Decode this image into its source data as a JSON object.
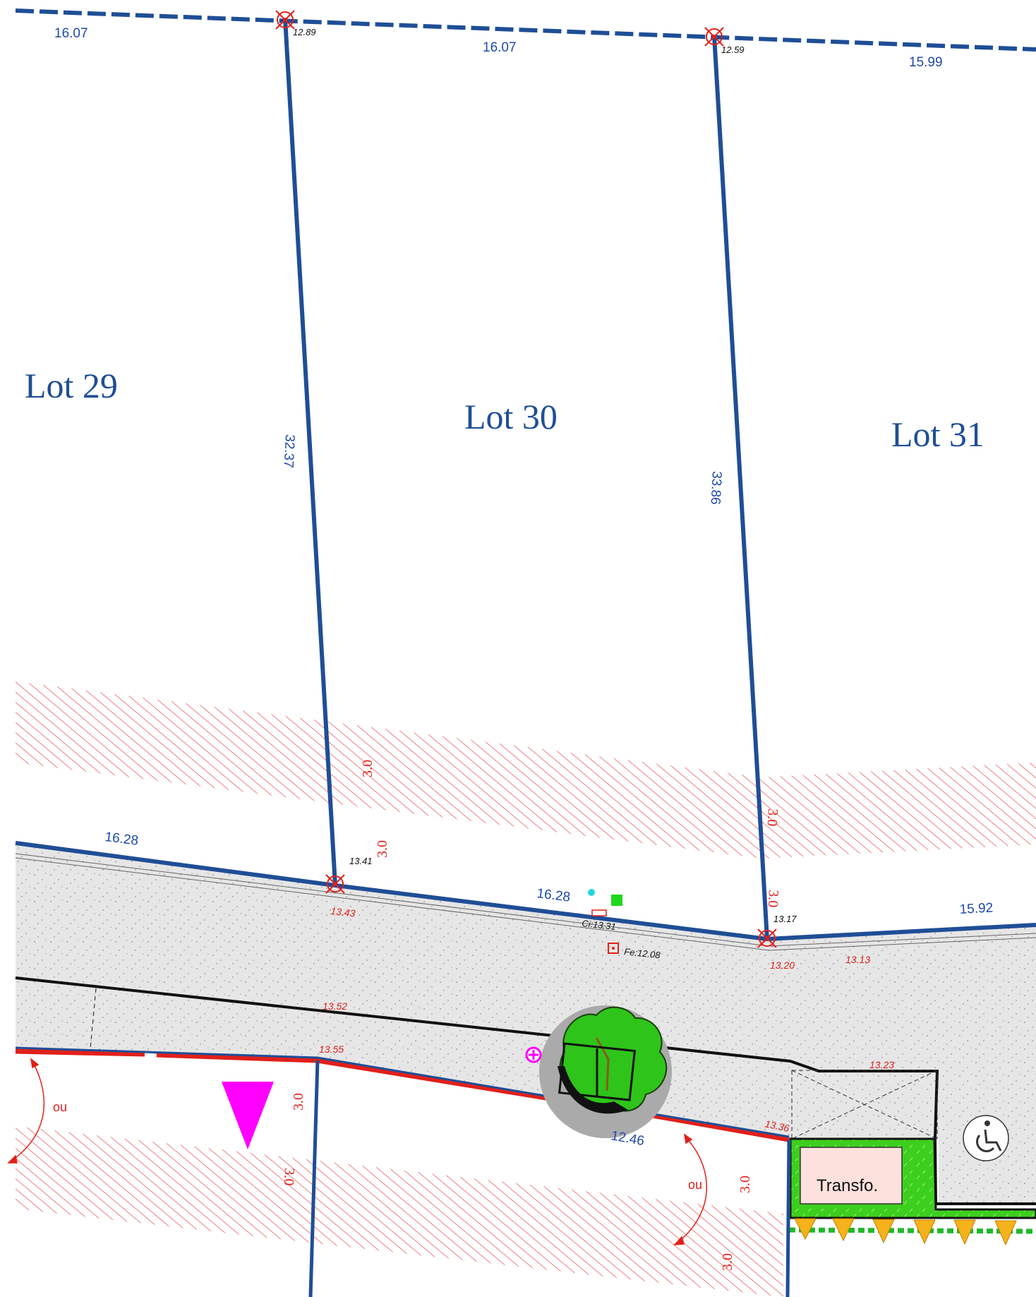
{
  "lots": {
    "lot29": "Lot 29",
    "lot30": "Lot 30",
    "lot31": "Lot 31"
  },
  "dimensions": {
    "top_left": "16.07",
    "top_mid": "16.07",
    "top_right": "15.99",
    "side_left": "32.37",
    "side_right": "33.86",
    "front_left": "16.28",
    "front_mid": "16.28",
    "front_right": "15.92",
    "sidewalk": "12.46"
  },
  "altitudes": {
    "top_1": "12.89",
    "top_2": "12.59",
    "front_1": "13.41",
    "front_2": "13.17",
    "red_1": "13.43",
    "red_2": "13.20",
    "red_3": "13.13",
    "red_4": "13.52",
    "red_5": "13.55",
    "red_6": "13.23",
    "red_7": "13.36",
    "ci": "Ci:13.31",
    "fe": "Fe:12.08"
  },
  "setbacks": {
    "s1": "3.0",
    "s2": "3.0",
    "s3": "3.0",
    "s4": "3.0",
    "s5": "3.0",
    "s6": "3.0",
    "s7": "3.0",
    "s8": "3.0"
  },
  "labels": {
    "ou_left": "ou",
    "ou_right": "ou",
    "transfo": "Transfo."
  },
  "colors": {
    "boundary": "#1f4e96",
    "hatch": "#e0201a",
    "road": "#e6e6e6",
    "green_area": "#3ccf1e",
    "magenta": "#ff00ff",
    "triangle_orange": "#f5b21a"
  },
  "icons": {
    "tree": "tree-icon",
    "accessibility": "wheelchair-icon",
    "boundary_marker": "boundary-marker-icon"
  }
}
